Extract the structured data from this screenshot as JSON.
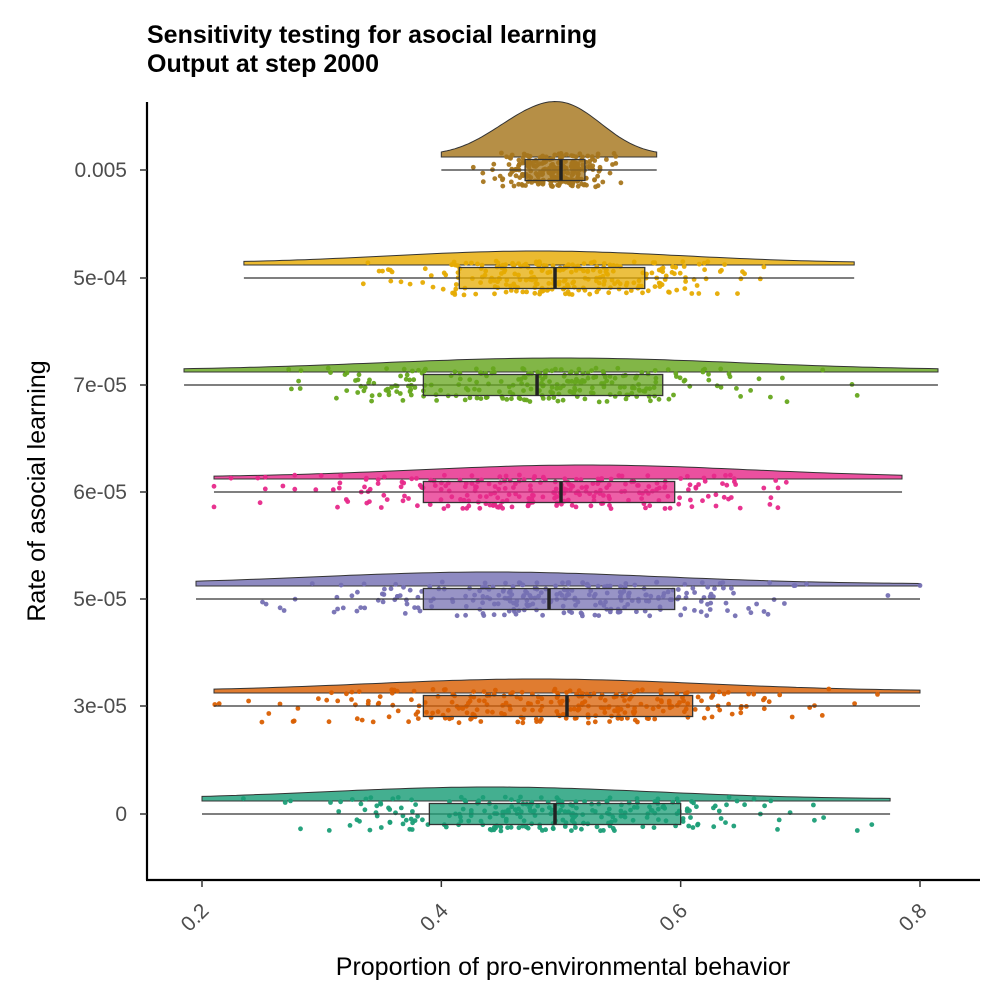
{
  "chart_data": {
    "type": "raincloud",
    "title": "Sensitivity testing for asocial learning",
    "subtitle": "Output at step 2000",
    "xlabel": "Proportion of pro-environmental behavior",
    "ylabel": "Rate of asocial learning",
    "xlim": [
      0.165,
      0.965
    ],
    "x_ticks": [
      "0.2",
      "0.4",
      "0.6",
      "0.8"
    ],
    "x_tick_values": [
      0.2,
      0.4,
      0.6,
      0.8
    ],
    "grid": false,
    "legend": "none",
    "groups": [
      {
        "label": "0.005",
        "color": "#a6761d",
        "min": 0.4,
        "q1": 0.47,
        "median": 0.5,
        "q3": 0.52,
        "max": 0.58,
        "density_peak": 0.5
      },
      {
        "label": "5e-04",
        "color": "#e6ab02",
        "min": 0.235,
        "q1": 0.415,
        "median": 0.495,
        "q3": 0.57,
        "max": 0.745,
        "density_peak": 0.48
      },
      {
        "label": "7e-05",
        "color": "#66a61e",
        "min": 0.185,
        "q1": 0.385,
        "median": 0.48,
        "q3": 0.585,
        "max": 0.815,
        "density_peak": 0.5
      },
      {
        "label": "6e-05",
        "color": "#e7298a",
        "min": 0.21,
        "q1": 0.385,
        "median": 0.5,
        "q3": 0.595,
        "max": 0.785,
        "density_peak": 0.52
      },
      {
        "label": "5e-05",
        "color": "#7570b3",
        "min": 0.195,
        "q1": 0.385,
        "median": 0.49,
        "q3": 0.595,
        "max": 0.8,
        "density_peak": 0.44
      },
      {
        "label": "3e-05",
        "color": "#d95f02",
        "min": 0.21,
        "q1": 0.385,
        "median": 0.505,
        "q3": 0.61,
        "max": 0.8,
        "density_peak": 0.48
      },
      {
        "label": "0",
        "color": "#1b9e77",
        "min": 0.2,
        "q1": 0.39,
        "median": 0.495,
        "q3": 0.6,
        "max": 0.775,
        "density_peak": 0.44
      }
    ]
  }
}
